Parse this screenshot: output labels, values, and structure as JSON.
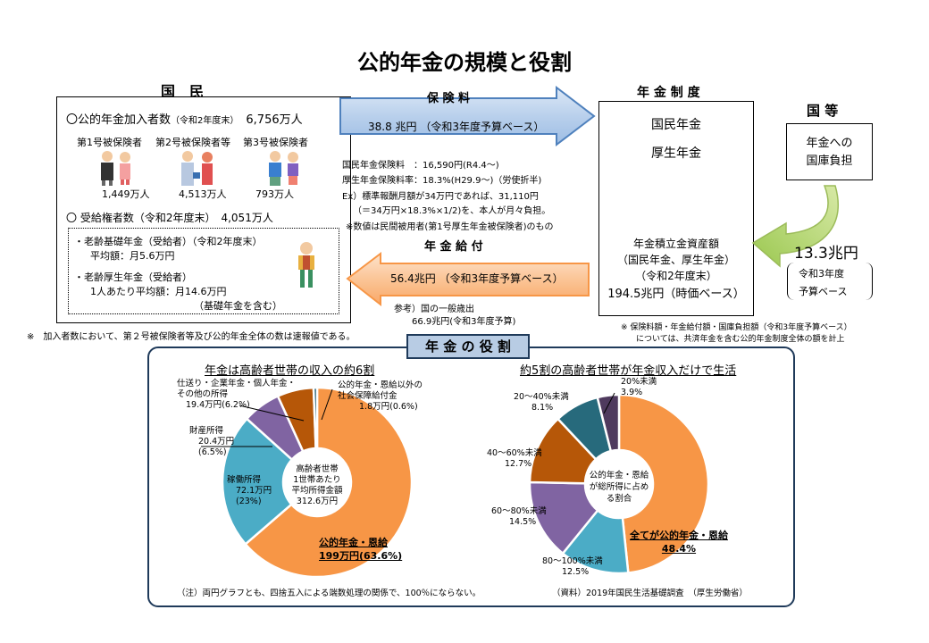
{
  "title": "公的年金の規模と役割",
  "kokumin": {
    "heading": "国　民",
    "enrollees_label": "〇公的年金加入者数",
    "enrollees_date": "（令和2年度末）",
    "enrollees_value": "6,756万人",
    "groups": [
      {
        "label": "第1号被保険者",
        "value": "1,449万人"
      },
      {
        "label": "第2号被保険者等",
        "value": "4,513万人"
      },
      {
        "label": "第3号被保険者",
        "value": "793万人"
      }
    ],
    "recipients_label": "〇 受給権者数（令和2年度末）",
    "recipients_value": "4,051万人",
    "basic_pension_line1": "・老齢基礎年金（受給者）（令和2年度末）",
    "basic_pension_line2": "平均額：月5.6万円",
    "employee_pension_line1": "・老齢厚生年金（受給者）",
    "employee_pension_line2": "1人あたり平均額：月14.6万円",
    "employee_pension_line3": "（基礎年金を含む）",
    "footnote": "※　加入者数において、第２号被保険者等及び公的年金全体の数は速報値である。"
  },
  "premium": {
    "heading": "保 険 料",
    "amount": "38.8 兆円 （令和3年度予算ベース）",
    "lines": [
      "国民年金保険料　：16,590円(R4.4～)",
      "厚生年金保険料率：18.3%(H29.9～)（労使折半)",
      "Ex）標準報酬月額が34万円であれば、31,110円",
      "（＝34万円×18.3%×1/2)を、本人が月々負担。",
      "※数値は民間被用者(第1号厚生年金被保険者)のもの"
    ]
  },
  "benefit": {
    "heading": "年 金 給 付",
    "amount": "56.4兆円 （令和3年度予算ベース）",
    "ref_line1": "参考）国の一般歳出",
    "ref_line2": "66.9兆円(令和3年度予算)"
  },
  "system": {
    "heading": "年 金 制 度",
    "item1": "国民年金",
    "item2": "厚生年金",
    "reserve_line1": "年金積立金資産額",
    "reserve_line2": "（国民年金、厚生年金）",
    "reserve_line3": "（令和2年度末）",
    "reserve_line4": "194.5兆円（時価ベース）",
    "note_line1": "※ 保険料額・年金給付額・国庫負担額（令和3年度予算ベース）",
    "note_line2": "については、共済年金を含む公的年金制度全体の額を計上"
  },
  "state": {
    "heading": "国 等",
    "box_line1": "年金への",
    "box_line2": "国庫負担",
    "amount": "13.3兆円",
    "basis_line1": "令和3年度",
    "basis_line2": "予算ベース"
  },
  "role": {
    "heading": "年 金 の 役 割",
    "note": "（注）両円グラフとも、四捨五入による端数処理の関係で、100％にならない。",
    "source": "（資料）2019年国民生活基礎調査　（厚生労働省）"
  },
  "chart_data": [
    {
      "type": "pie",
      "title": "年金は高齢者世帯の収入の約6割",
      "center_label": [
        "高齢者世帯",
        "1世帯あたり",
        "平均所得金額",
        "312.6万円"
      ],
      "categories": [
        "公的年金・恩給",
        "稼働所得",
        "財産所得",
        "仕送り・企業年金・個人年金・その他の所得",
        "公的年金・恩給以外の社会保障給付金"
      ],
      "amounts": [
        "199万円",
        "72.1万円",
        "20.4万円",
        "19.4万円",
        "1.8万円"
      ],
      "values": [
        63.6,
        23,
        6.5,
        6.2,
        0.6
      ],
      "labels": [
        [
          "公的年金・恩給",
          "199万円(63.6%)"
        ],
        [
          "稼働所得",
          "72.1万円",
          "(23%)"
        ],
        [
          "財産所得",
          "20.4万円",
          "(6.5%)"
        ],
        [
          "仕送り・企業年金・個人年金・",
          "その他の所得",
          "19.4万円(6.2%)"
        ],
        [
          "公的年金・恩給以外の",
          "社会保障給付金",
          "1.8万円(0.6%)"
        ]
      ],
      "colors": [
        "#f79646",
        "#4bacc6",
        "#8064a2",
        "#b65708",
        "#1f5b6e"
      ]
    },
    {
      "type": "pie",
      "title": "約5割の高齢者世帯が年金収入だけで生活",
      "center_label": [
        "公的年金・恩給",
        "が総所得に占め",
        "る割合"
      ],
      "categories": [
        "全てが公的年金・恩給",
        "80～100%未満",
        "60～80%未満",
        "40～60%未満",
        "20～40%未満",
        "20%未満"
      ],
      "values": [
        48.4,
        12.5,
        14.5,
        12.7,
        8.1,
        3.9
      ],
      "labels": [
        [
          "全てが公的年金・恩給",
          "48.4%"
        ],
        [
          "80～100%未満",
          "12.5%"
        ],
        [
          "60～80%未満",
          "14.5%"
        ],
        [
          "40～60%未満",
          "12.7%"
        ],
        [
          "20～40%未満",
          "8.1%"
        ],
        [
          "20%未満",
          "3.9%"
        ]
      ],
      "colors": [
        "#f79646",
        "#4bacc6",
        "#8064a2",
        "#b65708",
        "#276a7c",
        "#4f3a5e"
      ]
    }
  ]
}
